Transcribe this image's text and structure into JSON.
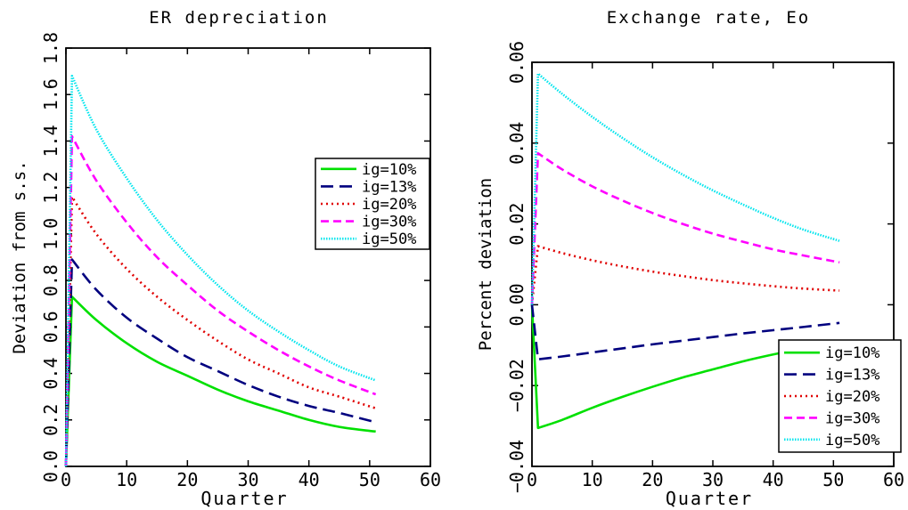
{
  "chart_data": [
    {
      "type": "line",
      "title": "ER depreciation",
      "xlabel": "Quarter",
      "ylabel": "Deviation from s.s.",
      "xlim": [
        0,
        60
      ],
      "ylim": [
        0.0,
        1.8
      ],
      "xticks": [
        "0",
        "10",
        "20",
        "30",
        "40",
        "50",
        "60"
      ],
      "yticks": [
        "0.0",
        "0.2",
        "0.4",
        "0.6",
        "0.8",
        "1.0",
        "1.2",
        "1.4",
        "1.6",
        "1.8"
      ],
      "legend_position": "right",
      "x": [
        0,
        1,
        5,
        10,
        15,
        20,
        25,
        30,
        35,
        40,
        45,
        51
      ],
      "series": [
        {
          "name": "ig=10%",
          "color": "#00e000",
          "dash": "solid",
          "values": [
            0.0,
            0.73,
            0.63,
            0.53,
            0.45,
            0.39,
            0.33,
            0.28,
            0.24,
            0.2,
            0.17,
            0.15
          ]
        },
        {
          "name": "ig=13%",
          "color": "#00007f",
          "dash": "longdash",
          "values": [
            0.0,
            0.89,
            0.76,
            0.64,
            0.55,
            0.47,
            0.41,
            0.35,
            0.3,
            0.26,
            0.23,
            0.19
          ]
        },
        {
          "name": "ig=20%",
          "color": "#e00000",
          "dash": "dot",
          "values": [
            0.0,
            1.16,
            1.0,
            0.85,
            0.73,
            0.63,
            0.54,
            0.46,
            0.4,
            0.34,
            0.3,
            0.25
          ]
        },
        {
          "name": "ig=30%",
          "color": "#ff00ff",
          "dash": "dash",
          "values": [
            0.0,
            1.42,
            1.23,
            1.05,
            0.9,
            0.78,
            0.67,
            0.58,
            0.5,
            0.43,
            0.37,
            0.31
          ]
        },
        {
          "name": "ig=50%",
          "color": "#00e5ee",
          "dash": "fine",
          "values": [
            0.0,
            1.68,
            1.45,
            1.24,
            1.06,
            0.91,
            0.78,
            0.67,
            0.58,
            0.5,
            0.43,
            0.37
          ]
        }
      ]
    },
    {
      "type": "line",
      "title": "Exchange rate, Eo",
      "xlabel": "Quarter",
      "ylabel": "Percent deviation",
      "xlim": [
        0,
        60
      ],
      "ylim": [
        -0.04,
        0.06
      ],
      "xticks": [
        "0",
        "10",
        "20",
        "30",
        "40",
        "50",
        "60"
      ],
      "yticks": [
        "−0.04",
        "−0.02",
        "0.00",
        "0.02",
        "0.04",
        "0.06"
      ],
      "legend_position": "bottom-right",
      "x": [
        0,
        1,
        5,
        10,
        15,
        20,
        25,
        30,
        35,
        40,
        45,
        51
      ],
      "series": [
        {
          "name": "ig=10%",
          "color": "#00e000",
          "dash": "solid",
          "values": [
            0.0,
            -0.0305,
            -0.0285,
            -0.0255,
            -0.0228,
            -0.0203,
            -0.018,
            -0.016,
            -0.014,
            -0.0123,
            -0.0108,
            -0.0092
          ]
        },
        {
          "name": "ig=13%",
          "color": "#00007f",
          "dash": "longdash",
          "values": [
            0.0,
            -0.0135,
            -0.0128,
            -0.0118,
            -0.0108,
            -0.0098,
            -0.0089,
            -0.008,
            -0.0071,
            -0.0063,
            -0.0055,
            -0.0045
          ]
        },
        {
          "name": "ig=20%",
          "color": "#e00000",
          "dash": "dot",
          "values": [
            0.0,
            0.0145,
            0.0128,
            0.011,
            0.0095,
            0.0082,
            0.0071,
            0.0061,
            0.0053,
            0.0046,
            0.004,
            0.0035
          ]
        },
        {
          "name": "ig=30%",
          "color": "#ff00ff",
          "dash": "dash",
          "values": [
            0.0,
            0.0375,
            0.0335,
            0.0293,
            0.0258,
            0.0227,
            0.02,
            0.0176,
            0.0156,
            0.0137,
            0.0122,
            0.0105
          ]
        },
        {
          "name": "ig=50%",
          "color": "#00e5ee",
          "dash": "fine",
          "values": [
            0.0,
            0.0572,
            0.0522,
            0.0465,
            0.0413,
            0.0365,
            0.0322,
            0.0283,
            0.0248,
            0.0215,
            0.0186,
            0.0158
          ]
        }
      ]
    }
  ]
}
